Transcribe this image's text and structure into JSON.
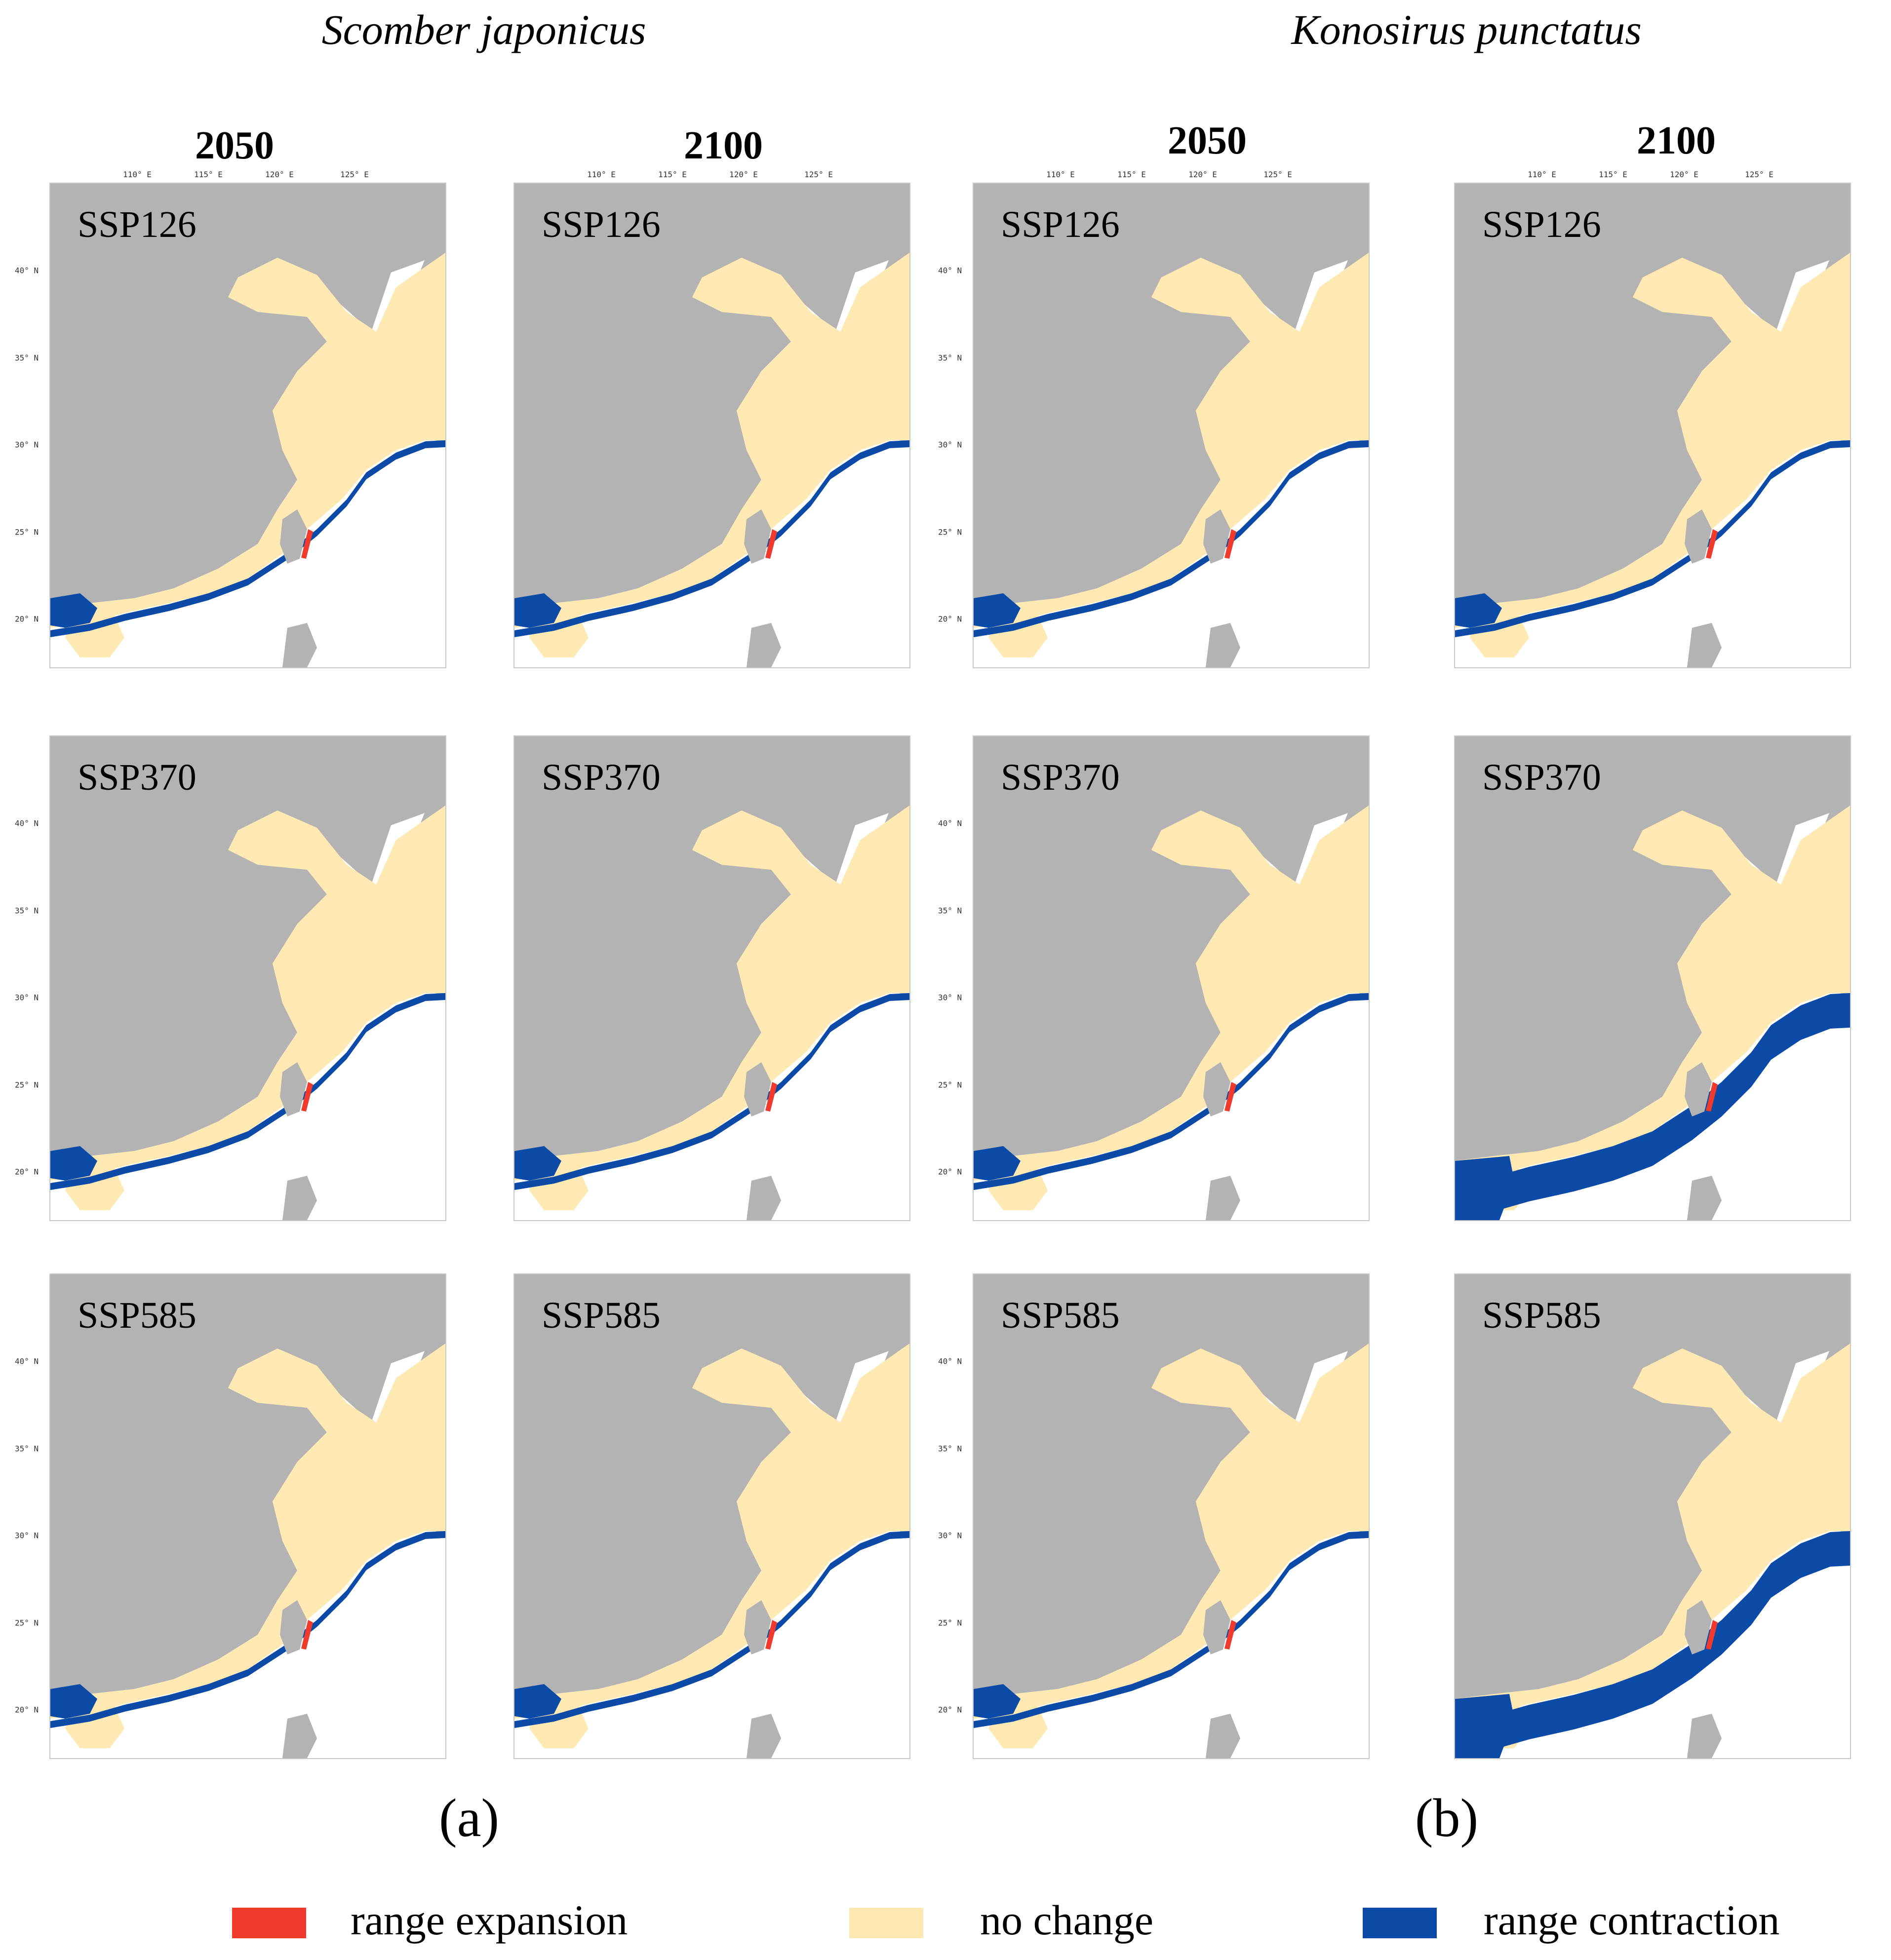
{
  "colors": {
    "land": "#b3b3b3",
    "no_change": "#fde9b1",
    "range_expansion": "#f03a2e",
    "range_contraction": "#0b4aa6",
    "background": "#ffffff"
  },
  "species": [
    {
      "name": "Scomber japonicus",
      "panel_letter": "(a)"
    },
    {
      "name": "Konosirus punctatus",
      "panel_letter": "(b)"
    }
  ],
  "years": [
    "2050",
    "2100"
  ],
  "scenarios": [
    "SSP126",
    "SSP370",
    "SSP585"
  ],
  "longitude_ticks": [
    "110° E",
    "115° E",
    "120° E",
    "125° E"
  ],
  "latitude_ticks": [
    "40° N",
    "35° N",
    "30° N",
    "25° N",
    "20° N"
  ],
  "maps": [
    {
      "species": "Scomber japonicus",
      "year": "2050",
      "scenario": "SSP126",
      "contraction_level": "low"
    },
    {
      "species": "Scomber japonicus",
      "year": "2100",
      "scenario": "SSP126",
      "contraction_level": "low"
    },
    {
      "species": "Konosirus punctatus",
      "year": "2050",
      "scenario": "SSP126",
      "contraction_level": "low"
    },
    {
      "species": "Konosirus punctatus",
      "year": "2100",
      "scenario": "SSP126",
      "contraction_level": "low"
    },
    {
      "species": "Scomber japonicus",
      "year": "2050",
      "scenario": "SSP370",
      "contraction_level": "low"
    },
    {
      "species": "Scomber japonicus",
      "year": "2100",
      "scenario": "SSP370",
      "contraction_level": "low"
    },
    {
      "species": "Konosirus punctatus",
      "year": "2050",
      "scenario": "SSP370",
      "contraction_level": "low"
    },
    {
      "species": "Konosirus punctatus",
      "year": "2100",
      "scenario": "SSP370",
      "contraction_level": "high"
    },
    {
      "species": "Scomber japonicus",
      "year": "2050",
      "scenario": "SSP585",
      "contraction_level": "low"
    },
    {
      "species": "Scomber japonicus",
      "year": "2100",
      "scenario": "SSP585",
      "contraction_level": "low"
    },
    {
      "species": "Konosirus punctatus",
      "year": "2050",
      "scenario": "SSP585",
      "contraction_level": "low"
    },
    {
      "species": "Konosirus punctatus",
      "year": "2100",
      "scenario": "SSP585",
      "contraction_level": "high"
    }
  ],
  "legend": [
    {
      "label": "range expansion",
      "color": "#f03a2e"
    },
    {
      "label": "no change",
      "color": "#fde9b1"
    },
    {
      "label": "range contraction",
      "color": "#0b4aa6"
    }
  ]
}
